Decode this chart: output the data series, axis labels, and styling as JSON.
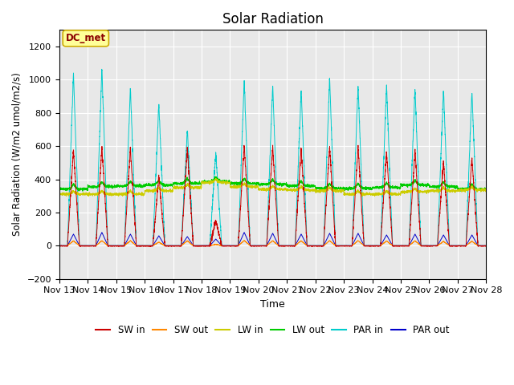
{
  "title": "Solar Radiation",
  "ylabel": "Solar Radiation (W/m2 umol/m2/s)",
  "xlabel": "Time",
  "annotation": "DC_met",
  "ylim": [
    -200,
    1300
  ],
  "yticks": [
    -200,
    0,
    200,
    400,
    600,
    800,
    1000,
    1200
  ],
  "start_day": 13,
  "end_day": 28,
  "n_days": 15,
  "fig_bg_color": "#ffffff",
  "plot_bg_color": "#e8e8e8",
  "series": {
    "SW_in": {
      "color": "#cc0000",
      "label": "SW in"
    },
    "SW_out": {
      "color": "#ff8800",
      "label": "SW out"
    },
    "LW_in": {
      "color": "#cccc00",
      "label": "LW in"
    },
    "LW_out": {
      "color": "#00cc00",
      "label": "LW out"
    },
    "PAR_in": {
      "color": "#00cccc",
      "label": "PAR in"
    },
    "PAR_out": {
      "color": "#0000cc",
      "label": "PAR out"
    }
  },
  "SW_in_peaks": [
    580,
    600,
    590,
    420,
    590,
    150,
    610,
    600,
    590,
    600,
    600,
    570,
    580,
    510,
    530
  ],
  "LW_in_base": [
    310,
    310,
    310,
    330,
    350,
    380,
    355,
    340,
    335,
    330,
    310,
    310,
    325,
    330,
    335
  ],
  "LW_out_base": [
    340,
    355,
    360,
    365,
    375,
    385,
    375,
    370,
    360,
    345,
    345,
    350,
    365,
    355,
    340
  ],
  "PAR_in_peaks": [
    1040,
    1070,
    950,
    860,
    700,
    560,
    1000,
    970,
    940,
    1010,
    970,
    970,
    950,
    940,
    935
  ],
  "PAR_out_peaks": [
    70,
    80,
    70,
    60,
    55,
    40,
    80,
    75,
    70,
    75,
    75,
    65,
    70,
    65,
    65
  ],
  "annotation_color": "#8B0000",
  "annotation_bg": "#ffff99",
  "annotation_edge": "#ccaa00"
}
